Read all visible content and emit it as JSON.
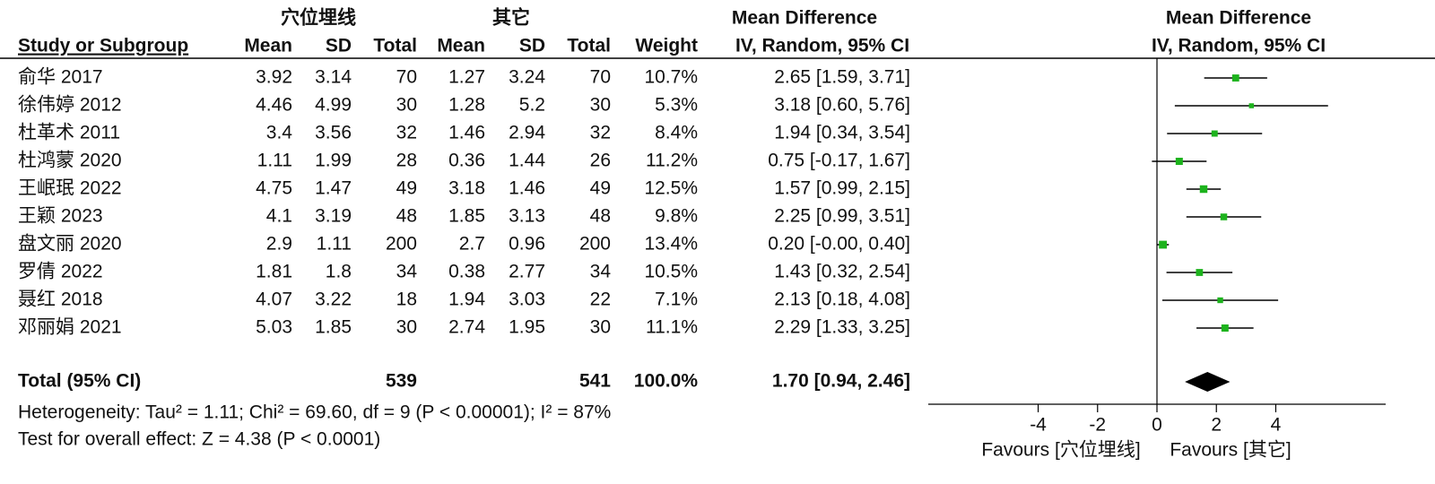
{
  "chart_data": {
    "type": "forest",
    "group_labels": [
      "穴位埋线",
      "其它"
    ],
    "effect_header": "Mean Difference",
    "columns": [
      "Study or Subgroup",
      "Mean",
      "SD",
      "Total",
      "Mean",
      "SD",
      "Total",
      "Weight",
      "IV, Random, 95% CI"
    ],
    "rows": [
      {
        "study": "俞华 2017",
        "mean1": 3.92,
        "sd1": 3.14,
        "total1": 70,
        "mean2": 1.27,
        "sd2": 3.24,
        "total2": 70,
        "weight": 10.7,
        "weight_label": "10.7%",
        "md": 2.65,
        "lower": 1.59,
        "upper": 3.71,
        "ci_label": "2.65 [1.59, 3.71]"
      },
      {
        "study": "徐伟婷 2012",
        "mean1": 4.46,
        "sd1": 4.99,
        "total1": 30,
        "mean2": 1.28,
        "sd2": 5.2,
        "total2": 30,
        "weight": 5.3,
        "weight_label": "5.3%",
        "md": 3.18,
        "lower": 0.6,
        "upper": 5.76,
        "ci_label": "3.18 [0.60, 5.76]"
      },
      {
        "study": "杜革术 2011",
        "mean1": 3.4,
        "sd1": 3.56,
        "total1": 32,
        "mean2": 1.46,
        "sd2": 2.94,
        "total2": 32,
        "weight": 8.4,
        "weight_label": "8.4%",
        "md": 1.94,
        "lower": 0.34,
        "upper": 3.54,
        "ci_label": "1.94 [0.34, 3.54]"
      },
      {
        "study": "杜鸿蒙 2020",
        "mean1": 1.11,
        "sd1": 1.99,
        "total1": 28,
        "mean2": 0.36,
        "sd2": 1.44,
        "total2": 26,
        "weight": 11.2,
        "weight_label": "11.2%",
        "md": 0.75,
        "lower": -0.17,
        "upper": 1.67,
        "ci_label": "0.75 [-0.17, 1.67]"
      },
      {
        "study": "王岷珉 2022",
        "mean1": 4.75,
        "sd1": 1.47,
        "total1": 49,
        "mean2": 3.18,
        "sd2": 1.46,
        "total2": 49,
        "weight": 12.5,
        "weight_label": "12.5%",
        "md": 1.57,
        "lower": 0.99,
        "upper": 2.15,
        "ci_label": "1.57 [0.99, 2.15]"
      },
      {
        "study": "王颖 2023",
        "mean1": 4.1,
        "sd1": 3.19,
        "total1": 48,
        "mean2": 1.85,
        "sd2": 3.13,
        "total2": 48,
        "weight": 9.8,
        "weight_label": "9.8%",
        "md": 2.25,
        "lower": 0.99,
        "upper": 3.51,
        "ci_label": "2.25 [0.99, 3.51]"
      },
      {
        "study": "盘文丽 2020",
        "mean1": 2.9,
        "sd1": 1.11,
        "total1": 200,
        "mean2": 2.7,
        "sd2": 0.96,
        "total2": 200,
        "weight": 13.4,
        "weight_label": "13.4%",
        "md": 0.2,
        "lower": -0.0,
        "upper": 0.4,
        "ci_label": "0.20 [-0.00, 0.40]"
      },
      {
        "study": "罗倩 2022",
        "mean1": 1.81,
        "sd1": 1.8,
        "total1": 34,
        "mean2": 0.38,
        "sd2": 2.77,
        "total2": 34,
        "weight": 10.5,
        "weight_label": "10.5%",
        "md": 1.43,
        "lower": 0.32,
        "upper": 2.54,
        "ci_label": "1.43 [0.32, 2.54]"
      },
      {
        "study": "聂红 2018",
        "mean1": 4.07,
        "sd1": 3.22,
        "total1": 18,
        "mean2": 1.94,
        "sd2": 3.03,
        "total2": 22,
        "weight": 7.1,
        "weight_label": "7.1%",
        "md": 2.13,
        "lower": 0.18,
        "upper": 4.08,
        "ci_label": "2.13 [0.18, 4.08]"
      },
      {
        "study": "邓丽娟 2021",
        "mean1": 5.03,
        "sd1": 1.85,
        "total1": 30,
        "mean2": 2.74,
        "sd2": 1.95,
        "total2": 30,
        "weight": 11.1,
        "weight_label": "11.1%",
        "md": 2.29,
        "lower": 1.33,
        "upper": 3.25,
        "ci_label": "2.29 [1.33, 3.25]"
      }
    ],
    "total": {
      "label": "Total (95% CI)",
      "total1": 539,
      "total2": 541,
      "weight": 100,
      "weight_label": "100.0%",
      "md": 1.7,
      "lower": 0.94,
      "upper": 2.46,
      "ci_label": "1.70 [0.94, 2.46]"
    },
    "heterogeneity": "Heterogeneity: Tau² = 1.11; Chi² = 69.60, df = 9 (P < 0.00001); I² = 87%",
    "overall_effect": "Test for overall effect: Z = 4.38 (P < 0.0001)",
    "xlim": [
      -7.7,
      7.7
    ],
    "xticks": [
      -4,
      -2,
      0,
      2,
      4
    ],
    "favours_left": "Favours [穴位埋线]",
    "favours_right": "Favours [其它]",
    "square_color": "#1db31d",
    "diamond_color": "#000000"
  }
}
